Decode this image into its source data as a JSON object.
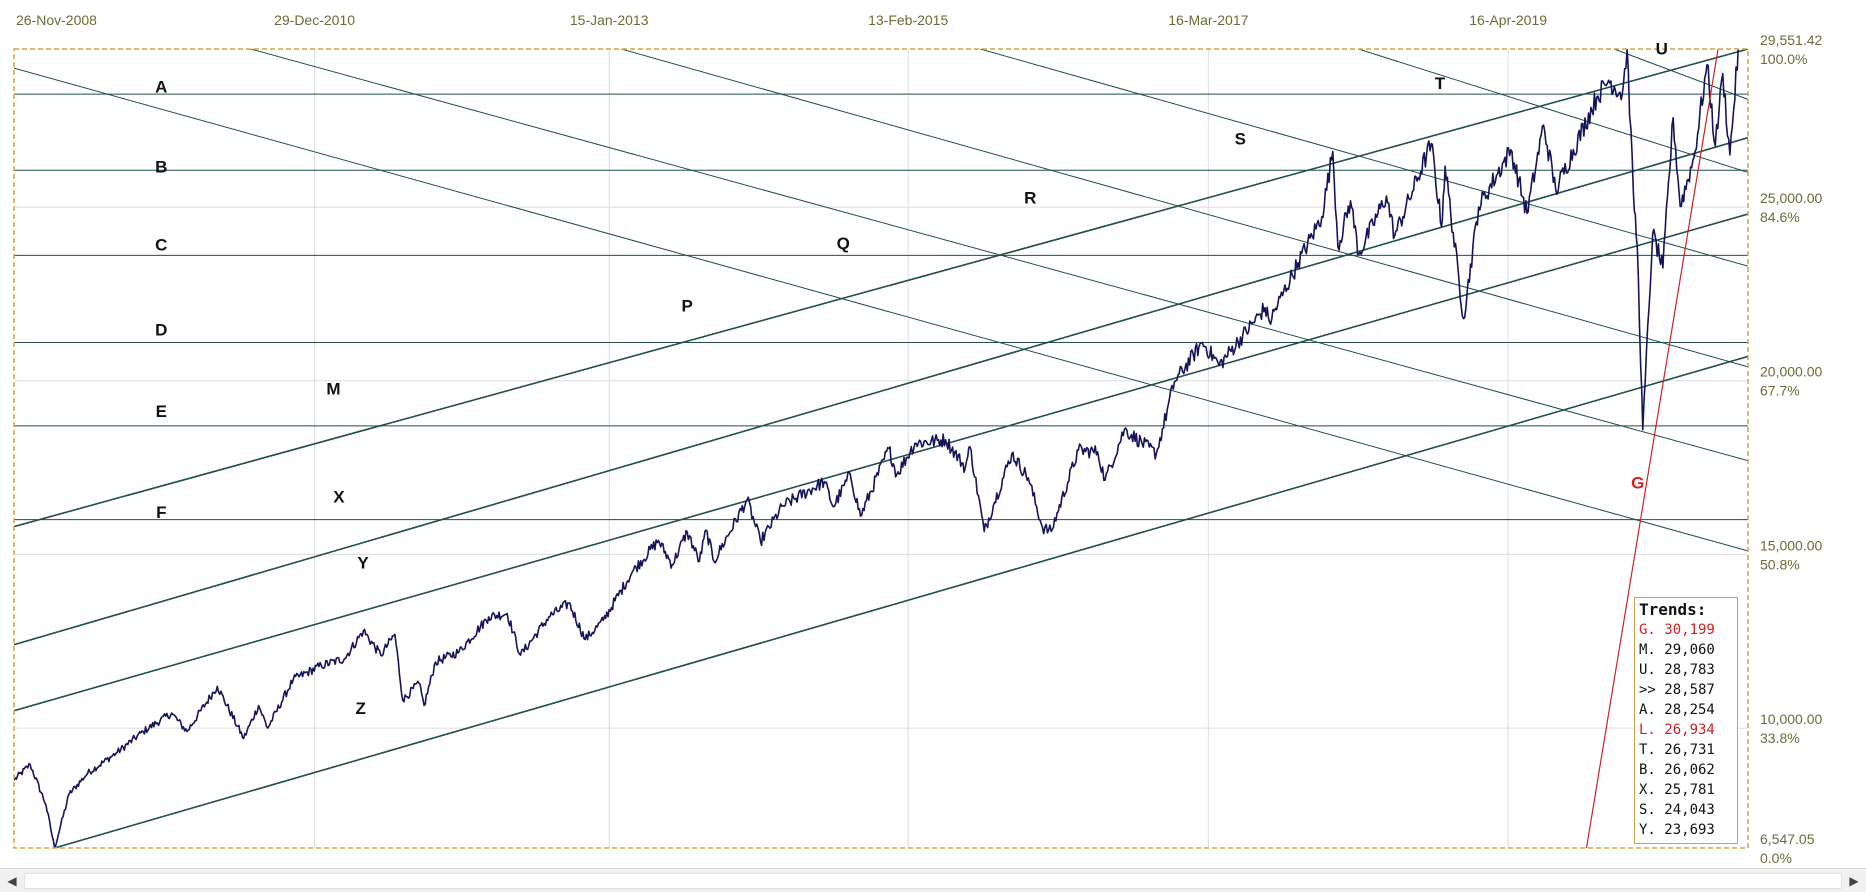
{
  "chart_data": {
    "type": "line",
    "x_dates": [
      "26-Nov-2008",
      "29-Dec-2010",
      "15-Jan-2013",
      "13-Feb-2015",
      "16-Mar-2017",
      "16-Apr-2019"
    ],
    "y_ticks": [
      {
        "value": 29551.42,
        "label": "29,551.42",
        "pct": "100.0%"
      },
      {
        "value": 25000,
        "label": "25,000.00",
        "pct": "84.6%"
      },
      {
        "value": 20000,
        "label": "20,000.00",
        "pct": "67.7%"
      },
      {
        "value": 15000,
        "label": "15,000.00",
        "pct": "50.8%"
      },
      {
        "value": 10000,
        "label": "10,000.00",
        "pct": "33.8%"
      },
      {
        "value": 6547.05,
        "label": "6,547.05",
        "pct": "0.0%"
      }
    ],
    "ylim": [
      6547.05,
      29551.42
    ],
    "xlim": [
      "2008-11-26",
      "2020-12-15"
    ],
    "grid": true,
    "price_color": "#14145a",
    "trend_color": "#1f4f4a",
    "highlight_color": "#d42020",
    "price_series": [
      [
        "2008-11-26",
        8500
      ],
      [
        "2009-01-06",
        8950
      ],
      [
        "2009-02-15",
        7800
      ],
      [
        "2009-03-09",
        6547
      ],
      [
        "2009-04-15",
        8100
      ],
      [
        "2009-06-01",
        8700
      ],
      [
        "2009-08-15",
        9300
      ],
      [
        "2009-10-20",
        9900
      ],
      [
        "2009-12-31",
        10430
      ],
      [
        "2010-02-08",
        9900
      ],
      [
        "2010-04-26",
        11200
      ],
      [
        "2010-07-02",
        9700
      ],
      [
        "2010-08-09",
        10650
      ],
      [
        "2010-09-01",
        10000
      ],
      [
        "2010-11-05",
        11400
      ],
      [
        "2011-01-15",
        11800
      ],
      [
        "2011-03-15",
        12000
      ],
      [
        "2011-05-02",
        12800
      ],
      [
        "2011-06-15",
        12100
      ],
      [
        "2011-07-21",
        12700
      ],
      [
        "2011-08-10",
        10800
      ],
      [
        "2011-09-20",
        11300
      ],
      [
        "2011-10-03",
        10650
      ],
      [
        "2011-11-01",
        11900
      ],
      [
        "2011-12-31",
        12200
      ],
      [
        "2012-03-15",
        13200
      ],
      [
        "2012-05-01",
        13300
      ],
      [
        "2012-06-04",
        12100
      ],
      [
        "2012-08-15",
        13200
      ],
      [
        "2012-10-05",
        13600
      ],
      [
        "2012-11-15",
        12550
      ],
      [
        "2012-12-31",
        13100
      ],
      [
        "2013-03-15",
        14500
      ],
      [
        "2013-05-20",
        15400
      ],
      [
        "2013-06-24",
        14700
      ],
      [
        "2013-08-01",
        15650
      ],
      [
        "2013-09-01",
        14800
      ],
      [
        "2013-09-18",
        15700
      ],
      [
        "2013-10-08",
        14800
      ],
      [
        "2013-12-31",
        16580
      ],
      [
        "2014-02-03",
        15370
      ],
      [
        "2014-04-01",
        16400
      ],
      [
        "2014-07-15",
        17100
      ],
      [
        "2014-08-07",
        16370
      ],
      [
        "2014-09-19",
        17300
      ],
      [
        "2014-10-15",
        16100
      ],
      [
        "2014-12-26",
        18050
      ],
      [
        "2015-01-15",
        17300
      ],
      [
        "2015-03-02",
        18200
      ],
      [
        "2015-05-19",
        18300
      ],
      [
        "2015-07-08",
        17500
      ],
      [
        "2015-07-20",
        18100
      ],
      [
        "2015-08-25",
        15660
      ],
      [
        "2015-09-20",
        16500
      ],
      [
        "2015-11-03",
        17900
      ],
      [
        "2015-12-15",
        17200
      ],
      [
        "2016-01-20",
        15770
      ],
      [
        "2016-02-11",
        15660
      ],
      [
        "2016-04-20",
        18000
      ],
      [
        "2016-06-08",
        17950
      ],
      [
        "2016-06-27",
        17140
      ],
      [
        "2016-08-15",
        18600
      ],
      [
        "2016-11-04",
        17900
      ],
      [
        "2016-12-20",
        19970
      ],
      [
        "2017-03-01",
        21100
      ],
      [
        "2017-04-13",
        20450
      ],
      [
        "2017-08-07",
        22100
      ],
      [
        "2017-08-18",
        21700
      ],
      [
        "2017-10-30",
        23400
      ],
      [
        "2017-12-29",
        24720
      ],
      [
        "2018-01-26",
        26600
      ],
      [
        "2018-02-08",
        23860
      ],
      [
        "2018-03-12",
        25180
      ],
      [
        "2018-04-02",
        23640
      ],
      [
        "2018-06-11",
        25320
      ],
      [
        "2018-07-02",
        24170
      ],
      [
        "2018-10-03",
        26830
      ],
      [
        "2018-10-29",
        24440
      ],
      [
        "2018-11-07",
        26180
      ],
      [
        "2018-12-24",
        21790
      ],
      [
        "2019-01-31",
        25000
      ],
      [
        "2019-04-23",
        26650
      ],
      [
        "2019-06-03",
        24820
      ],
      [
        "2019-07-15",
        27360
      ],
      [
        "2019-08-15",
        25480
      ],
      [
        "2019-11-27",
        28160
      ],
      [
        "2019-12-27",
        28650
      ],
      [
        "2020-01-31",
        28250
      ],
      [
        "2020-02-12",
        29551
      ],
      [
        "2020-02-28",
        25400
      ],
      [
        "2020-03-09",
        23850
      ],
      [
        "2020-03-23",
        18590
      ],
      [
        "2020-04-17",
        24240
      ],
      [
        "2020-05-13",
        23250
      ],
      [
        "2020-06-08",
        27570
      ],
      [
        "2020-06-26",
        25020
      ],
      [
        "2020-07-31",
        26430
      ],
      [
        "2020-09-02",
        29100
      ],
      [
        "2020-09-23",
        26760
      ],
      [
        "2020-10-12",
        28840
      ],
      [
        "2020-10-30",
        26500
      ],
      [
        "2020-11-24",
        30046
      ],
      [
        "2020-12-08",
        30200
      ]
    ],
    "horizontal_lines": [
      {
        "name": "A",
        "y": 28254
      },
      {
        "name": "B",
        "y": 26062
      },
      {
        "name": "C",
        "y": 23610
      },
      {
        "name": "D",
        "y": 21100
      },
      {
        "name": "E",
        "y": 18700
      },
      {
        "name": "F",
        "y": 16000
      }
    ],
    "trend_lines": [
      {
        "name": "M",
        "p1": [
          "2008-11-26",
          15800
        ],
        "p2": [
          "2020-12-15",
          29551
        ]
      },
      {
        "name": "X",
        "p1": [
          "2008-11-26",
          12400
        ],
        "p2": [
          "2020-12-15",
          27000
        ]
      },
      {
        "name": "Y",
        "p1": [
          "2008-11-26",
          10500
        ],
        "p2": [
          "2020-12-15",
          24800
        ]
      },
      {
        "name": "Z",
        "p1": [
          "2009-03-09",
          6547
        ],
        "p2": [
          "2020-12-15",
          20700
        ]
      },
      {
        "name": "P",
        "p1": [
          "2008-11-26",
          29000
        ],
        "p2": [
          "2020-12-15",
          15100
        ]
      },
      {
        "name": "Q",
        "p1": [
          "2010-07-20",
          29551
        ],
        "p2": [
          "2020-12-15",
          17700
        ]
      },
      {
        "name": "R",
        "p1": [
          "2013-02-15",
          29551
        ],
        "p2": [
          "2020-12-15",
          20400
        ]
      },
      {
        "name": "S",
        "p1": [
          "2015-08-15",
          29551
        ],
        "p2": [
          "2020-12-15",
          23300
        ]
      },
      {
        "name": "T",
        "p1": [
          "2018-04-01",
          29551
        ],
        "p2": [
          "2020-12-15",
          26000
        ]
      },
      {
        "name": "U",
        "p1": [
          "2020-01-10",
          29551
        ],
        "p2": [
          "2020-12-15",
          28100
        ]
      }
    ],
    "g_line": {
      "name": "G",
      "p1": [
        "2019-11-01",
        6547
      ],
      "p2": [
        "2020-09-30",
        29551
      ]
    },
    "line_labels": [
      {
        "text": "A",
        "pos": [
          "2009-12-05",
          28300
        ],
        "red": false
      },
      {
        "text": "B",
        "pos": [
          "2009-12-05",
          26000
        ],
        "red": false
      },
      {
        "text": "C",
        "pos": [
          "2009-12-05",
          23750
        ],
        "red": false
      },
      {
        "text": "D",
        "pos": [
          "2009-12-05",
          21300
        ],
        "red": false
      },
      {
        "text": "E",
        "pos": [
          "2009-12-05",
          18950
        ],
        "red": false
      },
      {
        "text": "F",
        "pos": [
          "2009-12-05",
          16050
        ],
        "red": false
      },
      {
        "text": "M",
        "pos": [
          "2011-02-15",
          19600
        ],
        "red": false
      },
      {
        "text": "X",
        "pos": [
          "2011-03-01",
          16500
        ],
        "red": false
      },
      {
        "text": "Y",
        "pos": [
          "2011-05-01",
          14600
        ],
        "red": false
      },
      {
        "text": "Z",
        "pos": [
          "2011-04-25",
          10400
        ],
        "red": false
      },
      {
        "text": "P",
        "pos": [
          "2013-08-01",
          22000
        ],
        "red": false
      },
      {
        "text": "Q",
        "pos": [
          "2014-09-01",
          23800
        ],
        "red": false
      },
      {
        "text": "R",
        "pos": [
          "2015-12-20",
          25100
        ],
        "red": false
      },
      {
        "text": "S",
        "pos": [
          "2017-06-05",
          26800
        ],
        "red": false
      },
      {
        "text": "T",
        "pos": [
          "2018-10-25",
          28400
        ],
        "red": false
      },
      {
        "text": "U",
        "pos": [
          "2020-05-10",
          29400
        ],
        "red": false
      },
      {
        "text": "G",
        "pos": [
          "2020-03-10",
          16900
        ],
        "red": true
      }
    ]
  },
  "trends": {
    "title": "Trends:",
    "rows": [
      {
        "label": "G.",
        "value": "30,199",
        "red": true
      },
      {
        "label": "M.",
        "value": "29,060",
        "red": false
      },
      {
        "label": "U.",
        "value": "28,783",
        "red": false
      },
      {
        "label": ">>",
        "value": "28,587",
        "red": false
      },
      {
        "label": "A.",
        "value": "28,254",
        "red": false
      },
      {
        "label": "L.",
        "value": "26,934",
        "red": true
      },
      {
        "label": "T.",
        "value": "26,731",
        "red": false
      },
      {
        "label": "B.",
        "value": "26,062",
        "red": false
      },
      {
        "label": "X.",
        "value": "25,781",
        "red": false
      },
      {
        "label": "S.",
        "value": "24,043",
        "red": false
      },
      {
        "label": "Y.",
        "value": "23,693",
        "red": false
      }
    ]
  },
  "scrollbar": {
    "left_icon": "chevron-left-icon",
    "right_icon": "chevron-right-icon"
  }
}
